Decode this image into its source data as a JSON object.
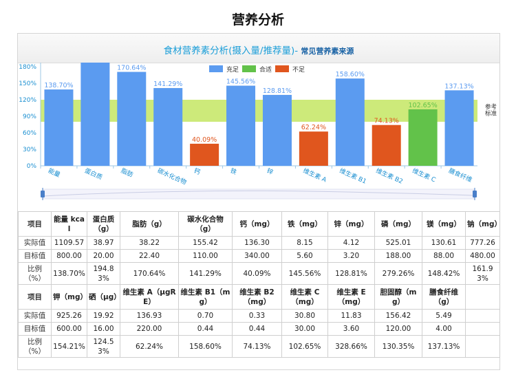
{
  "page_title": "营养分析",
  "chart_header": {
    "title": "食材营养素分析(摄入量/推荐量)-",
    "link": "常见营养素来源"
  },
  "colors": {
    "adequate": "#5b9bf0",
    "suitable": "#62c24a",
    "insufficient": "#e0561e",
    "band": "#cdea7a"
  },
  "chart_data": {
    "type": "bar",
    "legend": [
      {
        "label": "充足",
        "color": "#5b9bf0"
      },
      {
        "label": "合适",
        "color": "#62c24a"
      },
      {
        "label": "不足",
        "color": "#e0561e"
      }
    ],
    "legend_position": "top-center",
    "categories": [
      "能量",
      "蛋白质",
      "脂肪",
      "碳水化合物",
      "钙",
      "铁",
      "锌",
      "维生素 A",
      "维生素 B1",
      "维生素 B2",
      "维生素 C",
      "膳食纤维"
    ],
    "values": [
      138.7,
      194.83,
      170.64,
      141.29,
      40.09,
      145.56,
      128.81,
      62.24,
      158.6,
      74.13,
      102.65,
      137.13
    ],
    "labels": [
      "138.70%",
      "",
      "170.64%",
      "141.29%",
      "40.09%",
      "145.56%",
      "128.81%",
      "62.24%",
      "158.60%",
      "74.13%",
      "102.65%",
      "137.13%"
    ],
    "status": [
      "充足",
      "充足",
      "充足",
      "充足",
      "不足",
      "充足",
      "充足",
      "不足",
      "充足",
      "不足",
      "合适",
      "充足"
    ],
    "y_ticks": [
      "0%",
      "30%",
      "60%",
      "90%",
      "120%",
      "150%",
      "180%"
    ],
    "ylim": [
      0,
      200
    ],
    "reference_band": [
      80,
      120
    ],
    "reference_label": [
      "参考",
      "标准"
    ],
    "grid": false,
    "has_zoom_slider": true
  },
  "tables": [
    {
      "header": [
        "项目",
        "能量 kcal",
        "蛋白质（g）",
        "脂肪（g）",
        "碳水化合物（g）",
        "钙（mg）",
        "铁（mg）",
        "锌（mg）",
        "磷（mg）",
        "镁（mg）",
        "钠（mg）"
      ],
      "rows": [
        [
          "实际值",
          "1109.57",
          "38.97",
          "38.22",
          "155.42",
          "136.30",
          "8.15",
          "4.12",
          "525.01",
          "130.61",
          "777.26"
        ],
        [
          "目标值",
          "800.00",
          "20.00",
          "22.40",
          "110.00",
          "340.00",
          "5.60",
          "3.20",
          "188.00",
          "88.00",
          "480.00"
        ],
        [
          "比例（%）",
          "138.70%",
          "194.83%",
          "170.64%",
          "141.29%",
          "40.09%",
          "145.56%",
          "128.81%",
          "279.26%",
          "148.42%",
          "161.93%"
        ]
      ]
    },
    {
      "header": [
        "项目",
        "钾（mg）",
        "硒（μg）",
        "维生素 A（μgRE）",
        "维生素 B1（mg）",
        "维生素 B2（mg）",
        "维生素 C（mg）",
        "维生素 E（mg）",
        "胆固醇（mg）",
        "膳食纤维（g）",
        ""
      ],
      "rows": [
        [
          "实际值",
          "925.26",
          "19.92",
          "136.93",
          "0.70",
          "0.33",
          "30.80",
          "11.83",
          "156.42",
          "5.49",
          ""
        ],
        [
          "目标值",
          "600.00",
          "16.00",
          "220.00",
          "0.44",
          "0.44",
          "30.00",
          "3.60",
          "120.00",
          "4.00",
          ""
        ],
        [
          "比例（%）",
          "154.21%",
          "124.53%",
          "62.24%",
          "158.60%",
          "74.13%",
          "102.65%",
          "328.66%",
          "130.35%",
          "137.13%",
          ""
        ]
      ]
    }
  ]
}
